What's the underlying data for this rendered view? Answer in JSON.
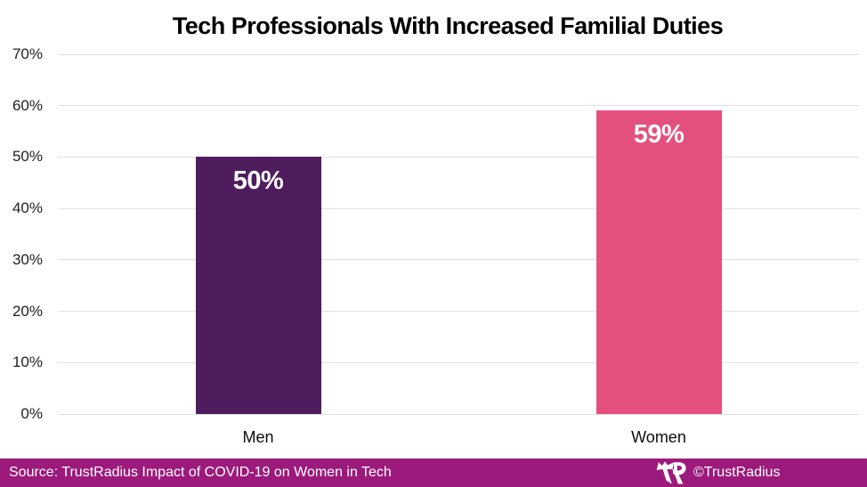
{
  "title": "Tech Professionals With Increased Familial Duties",
  "chart_data": {
    "type": "bar",
    "title": "Tech Professionals With Increased Familial Duties",
    "categories": [
      "Men",
      "Women"
    ],
    "values": [
      50,
      59
    ],
    "value_labels": [
      "50%",
      "59%"
    ],
    "bar_colors": [
      "#4f1c5e",
      "#e4507d"
    ],
    "value_label_color": "#ffffff",
    "xlabel": "",
    "ylabel": "",
    "ylim": [
      0,
      70
    ],
    "ytick_labels": [
      "0%",
      "10%",
      "20%",
      "30%",
      "40%",
      "50%",
      "60%",
      "70%"
    ],
    "gridlines": "horizontal",
    "gridline_color": "#e0e0e0",
    "legend": "none"
  },
  "footer": {
    "source_text": "Source: TrustRadius Impact of COVID-19 on Women in Tech",
    "credit_text": "©TrustRadius",
    "logo_name": "trustradius-tr-logo",
    "background_color": "#9c1a7b",
    "text_color": "#ffffff"
  }
}
